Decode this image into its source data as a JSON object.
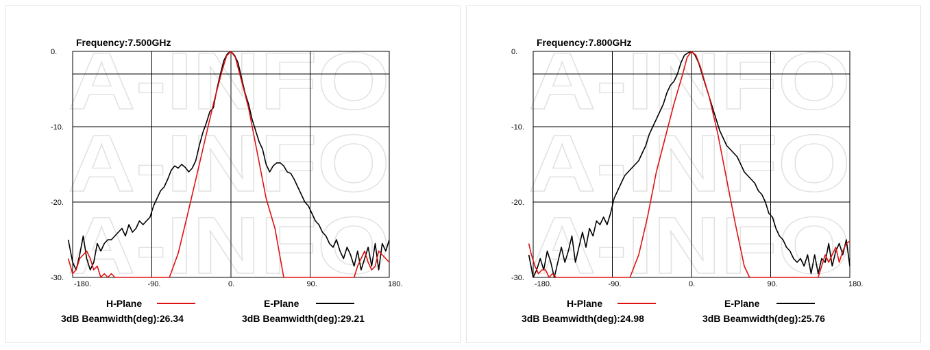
{
  "watermark": "A-INFO",
  "colors": {
    "h_plane": "#e01010",
    "e_plane": "#000000",
    "grid": "#000000"
  },
  "chart_data": [
    {
      "type": "line",
      "title": "Frequency:7.500GHz",
      "x_ticks": [
        "-180.",
        "-90.",
        "0.",
        "90.",
        "180."
      ],
      "y_ticks": [
        "0.",
        "-10.",
        "-20.",
        "-30."
      ],
      "xlim": [
        -180,
        180
      ],
      "ylim": [
        -30,
        0
      ],
      "grid": true,
      "series": [
        {
          "name": "H-Plane",
          "color": "#e01010",
          "beamwidth_label": "3dB Beamwidth(deg):26.34",
          "x": [
            -185,
            -180,
            -176,
            -172,
            -168,
            -164,
            -160,
            -156,
            -152,
            -148,
            -144,
            -140,
            -136,
            -132,
            -80,
            -70,
            -60,
            -50,
            -40,
            -30,
            -20,
            -10,
            -5,
            0,
            5,
            10,
            20,
            30,
            40,
            50,
            60,
            70,
            140,
            144,
            148,
            152,
            156,
            160,
            164,
            168,
            172,
            176,
            180
          ],
          "y": [
            -27.5,
            -29.5,
            -29,
            -27.5,
            -27,
            -26.5,
            -27.5,
            -29,
            -28.5,
            -30,
            -29.5,
            -30,
            -29.5,
            -30,
            -30,
            -30,
            -26.8,
            -22,
            -17,
            -12,
            -7,
            -2.5,
            -0.6,
            0,
            -0.8,
            -3,
            -7.5,
            -13.5,
            -19.5,
            -23.5,
            -30,
            -30,
            -30,
            -28.5,
            -27.5,
            -26.5,
            -28,
            -29,
            -28.5,
            -26.5,
            -27,
            -27.5,
            -28
          ]
        },
        {
          "name": "E-Plane",
          "color": "#000000",
          "beamwidth_label": "3dB Beamwidth(deg):29.21",
          "x": [
            -185,
            -180,
            -176,
            -172,
            -168,
            -164,
            -160,
            -156,
            -152,
            -148,
            -144,
            -140,
            -136,
            -132,
            -128,
            -124,
            -120,
            -116,
            -112,
            -108,
            -104,
            -100,
            -96,
            -92,
            -88,
            -84,
            -80,
            -76,
            -72,
            -68,
            -64,
            -60,
            -56,
            -52,
            -48,
            -44,
            -40,
            -36,
            -32,
            -28,
            -24,
            -20,
            -16,
            -12,
            -8,
            -4,
            0,
            4,
            8,
            12,
            16,
            20,
            24,
            28,
            32,
            36,
            40,
            44,
            48,
            52,
            56,
            60,
            64,
            68,
            72,
            76,
            80,
            84,
            88,
            92,
            96,
            100,
            104,
            108,
            112,
            116,
            120,
            124,
            128,
            132,
            136,
            140,
            144,
            148,
            152,
            156,
            160,
            164,
            168,
            172,
            176,
            180
          ],
          "y": [
            -25,
            -28,
            -29,
            -27,
            -24.5,
            -27.5,
            -29,
            -28,
            -25.5,
            -26.5,
            -25.5,
            -25,
            -25,
            -24.5,
            -24,
            -23.5,
            -24.5,
            -23,
            -24,
            -23.5,
            -22.5,
            -23,
            -22.5,
            -22,
            -20.5,
            -19.5,
            -18.5,
            -18,
            -17,
            -15.8,
            -15.2,
            -15.5,
            -15,
            -15.4,
            -16,
            -15.5,
            -14.5,
            -12.5,
            -10.8,
            -9.5,
            -8,
            -7.5,
            -5,
            -3,
            -1.2,
            -0.3,
            0,
            -0.5,
            -1.5,
            -3.5,
            -5.5,
            -7,
            -9,
            -10.5,
            -12,
            -13,
            -15,
            -16,
            -15.2,
            -14.8,
            -14.8,
            -15.2,
            -16,
            -16.2,
            -17,
            -18,
            -19,
            -20,
            -20.5,
            -21.5,
            -22.5,
            -23,
            -24,
            -24.5,
            -25.5,
            -26,
            -25,
            -26.5,
            -27.5,
            -26,
            -27,
            -28.5,
            -26.5,
            -29,
            -27.5,
            -26,
            -28.5,
            -25.5,
            -29,
            -25.5,
            -26.5,
            -25
          ]
        }
      ]
    },
    {
      "type": "line",
      "title": "Frequency:7.800GHz",
      "x_ticks": [
        "-180.",
        "-90.",
        "0.",
        "90.",
        "180."
      ],
      "y_ticks": [
        "0.",
        "-10.",
        "-20.",
        "-30."
      ],
      "xlim": [
        -180,
        180
      ],
      "ylim": [
        -30,
        0
      ],
      "grid": true,
      "series": [
        {
          "name": "H-Plane",
          "color": "#e01010",
          "beamwidth_label": "3dB Beamwidth(deg):24.98",
          "x": [
            -185,
            -182,
            -178,
            -174,
            -170,
            -166,
            -162,
            -158,
            -154,
            -150,
            -70,
            -60,
            -50,
            -40,
            -30,
            -20,
            -10,
            -5,
            0,
            5,
            10,
            20,
            30,
            40,
            50,
            60,
            66,
            140,
            144,
            148,
            152,
            156,
            160,
            164,
            168,
            172,
            176,
            180
          ],
          "y": [
            -25.5,
            -27,
            -28.5,
            -29.5,
            -29,
            -29,
            -30,
            -29.5,
            -30,
            -30,
            -30,
            -27,
            -22,
            -16,
            -11.5,
            -7,
            -3,
            -0.8,
            0,
            -0.5,
            -2,
            -6,
            -11,
            -17,
            -23,
            -28.5,
            -30,
            -30,
            -30,
            -28.5,
            -27,
            -28,
            -27,
            -26,
            -28,
            -26.5,
            -25.5,
            -25.2
          ]
        },
        {
          "name": "E-Plane",
          "color": "#000000",
          "beamwidth_label": "3dB Beamwidth(deg):25.76",
          "x": [
            -185,
            -180,
            -176,
            -172,
            -168,
            -164,
            -160,
            -156,
            -152,
            -148,
            -144,
            -140,
            -136,
            -132,
            -128,
            -124,
            -120,
            -116,
            -112,
            -108,
            -104,
            -100,
            -96,
            -92,
            -88,
            -84,
            -80,
            -76,
            -72,
            -68,
            -64,
            -60,
            -56,
            -52,
            -48,
            -44,
            -40,
            -36,
            -32,
            -28,
            -24,
            -20,
            -16,
            -12,
            -8,
            -4,
            0,
            4,
            8,
            12,
            16,
            20,
            24,
            28,
            32,
            36,
            40,
            44,
            48,
            52,
            56,
            60,
            64,
            68,
            72,
            76,
            80,
            84,
            88,
            92,
            96,
            100,
            104,
            108,
            112,
            116,
            120,
            124,
            128,
            132,
            136,
            140,
            144,
            148,
            152,
            156,
            160,
            164,
            168,
            172,
            176,
            180
          ],
          "y": [
            -27,
            -30,
            -29,
            -27.5,
            -29,
            -26.5,
            -28,
            -30,
            -28,
            -26,
            -28,
            -26.5,
            -24.5,
            -28,
            -26,
            -24,
            -26,
            -23.5,
            -24.5,
            -22.5,
            -23,
            -22,
            -23,
            -21.5,
            -19.5,
            -18.5,
            -17.5,
            -16.5,
            -16,
            -15.5,
            -15,
            -14.5,
            -13.5,
            -12.5,
            -11,
            -10,
            -9,
            -8,
            -7,
            -5.5,
            -4.5,
            -4,
            -3,
            -1.5,
            -0.5,
            -0.2,
            0,
            -0.5,
            -1.5,
            -3,
            -4.5,
            -6,
            -7.5,
            -9,
            -10.5,
            -11.5,
            -12.5,
            -13,
            -13.5,
            -14,
            -15,
            -16,
            -16.5,
            -17,
            -17.5,
            -18.5,
            -19,
            -20,
            -21.5,
            -22,
            -23.5,
            -24.5,
            -25,
            -26,
            -26.5,
            -27.5,
            -28,
            -27.5,
            -28.5,
            -27,
            -29.5,
            -27,
            -29.5,
            -27.5,
            -28,
            -25.5,
            -28.5,
            -26.5,
            -25.5,
            -27,
            -25,
            -28.5
          ]
        }
      ]
    }
  ]
}
